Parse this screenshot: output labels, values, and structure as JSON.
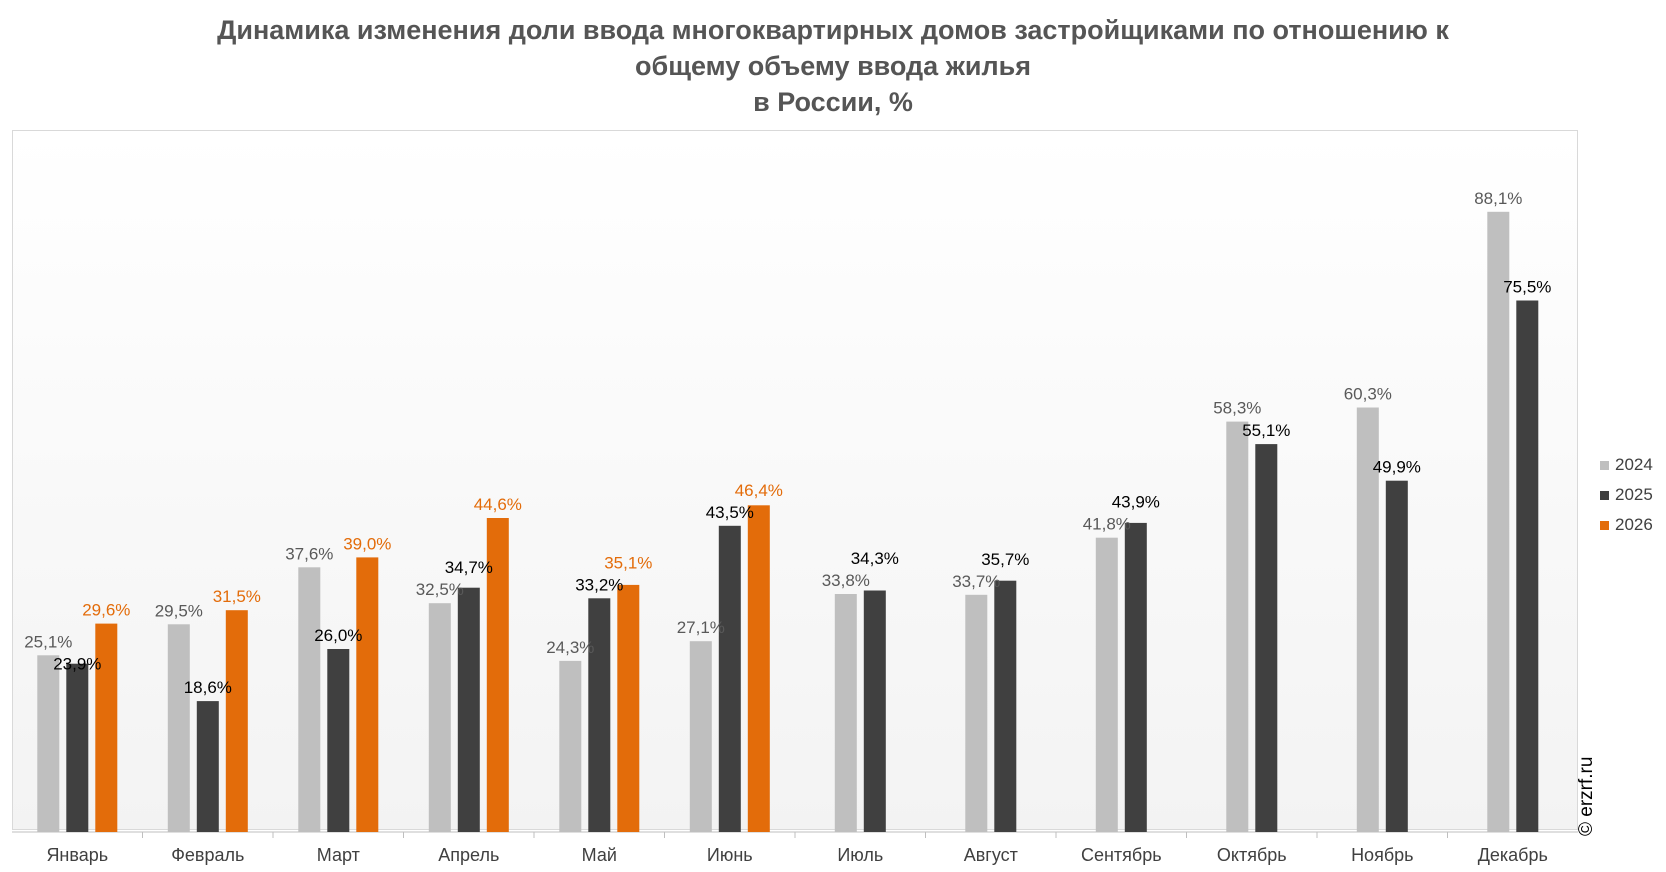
{
  "colors": {
    "series_2024": "#bfbfbf",
    "series_2025": "#404040",
    "series_2026": "#e36c0a",
    "label_2024": "#595959",
    "label_2025": "#000000",
    "label_2026": "#e36c0a"
  },
  "watermark": "© erzrf.ru",
  "chart_data": {
    "type": "bar",
    "title_lines": [
      "Динамика изменения доли ввода многоквартирных домов застройщиками по отношению к",
      "общему объему ввода жилья",
      "в России, %"
    ],
    "categories": [
      "Январь",
      "Февраль",
      "Март",
      "Апрель",
      "Май",
      "Июнь",
      "Июль",
      "Август",
      "Сентябрь",
      "Октябрь",
      "Ноябрь",
      "Декабрь"
    ],
    "series": [
      {
        "name": "2024",
        "values": [
          25.1,
          29.5,
          37.6,
          32.5,
          24.3,
          27.1,
          33.8,
          33.7,
          41.8,
          58.3,
          60.3,
          88.1
        ],
        "labels": [
          "25,1%",
          "29,5%",
          "37,6%",
          "32,5%",
          "24,3%",
          "27,1%",
          "33,8%",
          "33,7%",
          "41,8%",
          "58,3%",
          "60,3%",
          "88,1%"
        ]
      },
      {
        "name": "2025",
        "values": [
          23.9,
          18.6,
          26.0,
          34.7,
          33.2,
          43.5,
          34.3,
          35.7,
          43.9,
          55.1,
          49.9,
          75.5
        ],
        "labels": [
          "23,9%",
          "18,6%",
          "26,0%",
          "34,7%",
          "33,2%",
          "43,5%",
          "34,3%",
          "35,7%",
          "43,9%",
          "55,1%",
          "49,9%",
          "75,5%"
        ]
      },
      {
        "name": "2026",
        "values": [
          29.6,
          31.5,
          39.0,
          44.6,
          35.1,
          46.4,
          null,
          null,
          null,
          null,
          null,
          null
        ],
        "labels": [
          "29,6%",
          "31,5%",
          "39,0%",
          "44,6%",
          "35,1%",
          "46,4%",
          null,
          null,
          null,
          null,
          null,
          null
        ]
      }
    ],
    "xlabel": "",
    "ylabel": "",
    "ylim": [
      0,
      100
    ],
    "grid": false,
    "legend_position": "right"
  }
}
